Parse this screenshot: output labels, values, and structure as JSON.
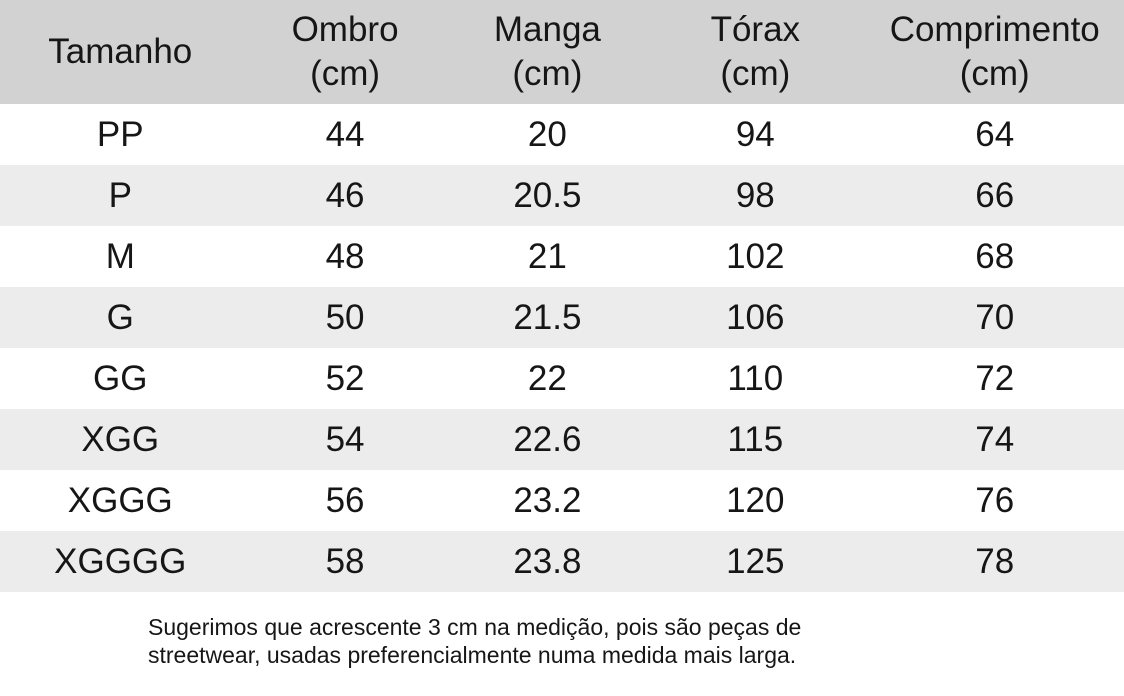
{
  "colors": {
    "header_bg": "#d2d2d2",
    "row_alt_bg": "#ececec",
    "text": "#161616"
  },
  "table": {
    "headers": [
      {
        "title": "Tamanho",
        "unit": ""
      },
      {
        "title": "Ombro",
        "unit": "(cm)"
      },
      {
        "title": "Manga",
        "unit": "(cm)"
      },
      {
        "title": "Tórax",
        "unit": "(cm)"
      },
      {
        "title": "Comprimento",
        "unit": "(cm)"
      }
    ],
    "rows": [
      [
        "PP",
        "44",
        "20",
        "94",
        "64"
      ],
      [
        "P",
        "46",
        "20.5",
        "98",
        "66"
      ],
      [
        "M",
        "48",
        "21",
        "102",
        "68"
      ],
      [
        "G",
        "50",
        "21.5",
        "106",
        "70"
      ],
      [
        "GG",
        "52",
        "22",
        "110",
        "72"
      ],
      [
        "XGG",
        "54",
        "22.6",
        "115",
        "74"
      ],
      [
        "XGGG",
        "56",
        "23.2",
        "120",
        "76"
      ],
      [
        "XGGGG",
        "58",
        "23.8",
        "125",
        "78"
      ]
    ]
  },
  "note": {
    "lines": [
      "Sugerimos que acrescente 3 cm na medição, pois são peças de",
      "streetwear, usadas preferencialmente numa medida mais larga."
    ]
  }
}
